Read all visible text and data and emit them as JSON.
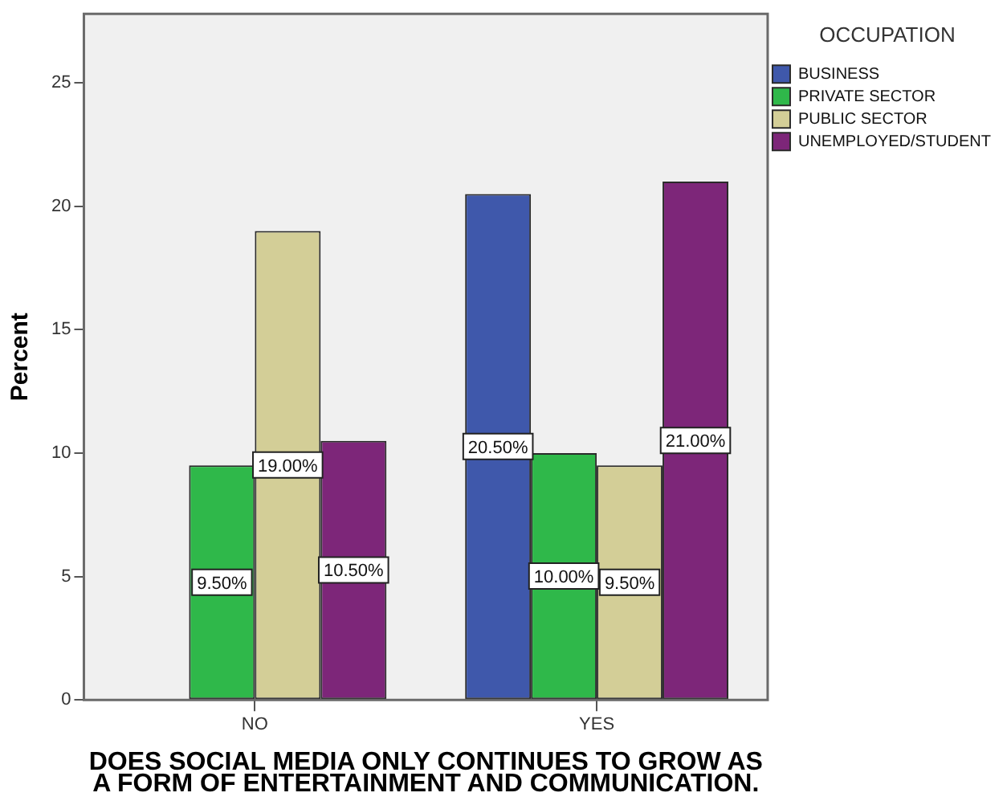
{
  "chart_data": {
    "type": "bar",
    "xlabel": "DOES SOCIAL MEDIA ONLY CONTINUES TO GROW AS\nA FORM OF ENTERTAINMENT AND COMMUNICATION.",
    "ylabel": "Percent",
    "legend_title": "OCCUPATION",
    "categories": [
      "NO",
      "YES"
    ],
    "series": [
      {
        "name": "BUSINESS",
        "color": "#3f58ab",
        "values": [
          null,
          20.5
        ],
        "value_labels": [
          null,
          "20.50%"
        ]
      },
      {
        "name": "PRIVATE SECTOR",
        "color": "#2fb84a",
        "values": [
          9.5,
          10
        ],
        "value_labels": [
          "9.50%",
          "10.00%"
        ]
      },
      {
        "name": "PUBLIC SECTOR",
        "color": "#d3ce97",
        "values": [
          19,
          9.5
        ],
        "value_labels": [
          "19.00%",
          "9.50%"
        ]
      },
      {
        "name": "UNEMPLOYED/STUDENT",
        "color": "#7d2679",
        "values": [
          10.5,
          21
        ],
        "value_labels": [
          "10.50%",
          "21.00%"
        ]
      }
    ],
    "ylim": [
      0,
      27.8
    ],
    "yticks": [
      0,
      5,
      10,
      15,
      20,
      25
    ],
    "grid": false,
    "legend": "right"
  }
}
